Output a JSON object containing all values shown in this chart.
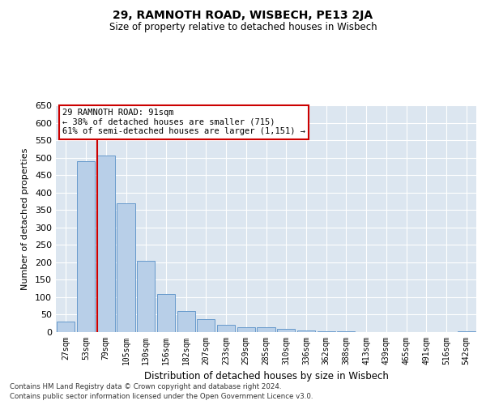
{
  "title": "29, RAMNOTH ROAD, WISBECH, PE13 2JA",
  "subtitle": "Size of property relative to detached houses in Wisbech",
  "xlabel": "Distribution of detached houses by size in Wisbech",
  "ylabel": "Number of detached properties",
  "categories": [
    "27sqm",
    "53sqm",
    "79sqm",
    "105sqm",
    "130sqm",
    "156sqm",
    "182sqm",
    "207sqm",
    "233sqm",
    "259sqm",
    "285sqm",
    "310sqm",
    "336sqm",
    "362sqm",
    "388sqm",
    "413sqm",
    "439sqm",
    "465sqm",
    "491sqm",
    "516sqm",
    "542sqm"
  ],
  "values": [
    30,
    490,
    505,
    370,
    205,
    108,
    60,
    37,
    20,
    15,
    13,
    10,
    5,
    2,
    2,
    1,
    0,
    1,
    0,
    1,
    2
  ],
  "bar_color": "#b8cfe8",
  "bar_edge_color": "#6699cc",
  "background_color": "#dce6f0",
  "red_line_index": 2,
  "red_line_color": "#cc0000",
  "annotation_text": "29 RAMNOTH ROAD: 91sqm\n← 38% of detached houses are smaller (715)\n61% of semi-detached houses are larger (1,151) →",
  "annotation_box_color": "#ffffff",
  "annotation_box_edge": "#cc0000",
  "ylim": [
    0,
    650
  ],
  "yticks": [
    0,
    50,
    100,
    150,
    200,
    250,
    300,
    350,
    400,
    450,
    500,
    550,
    600,
    650
  ],
  "footer_line1": "Contains HM Land Registry data © Crown copyright and database right 2024.",
  "footer_line2": "Contains public sector information licensed under the Open Government Licence v3.0."
}
